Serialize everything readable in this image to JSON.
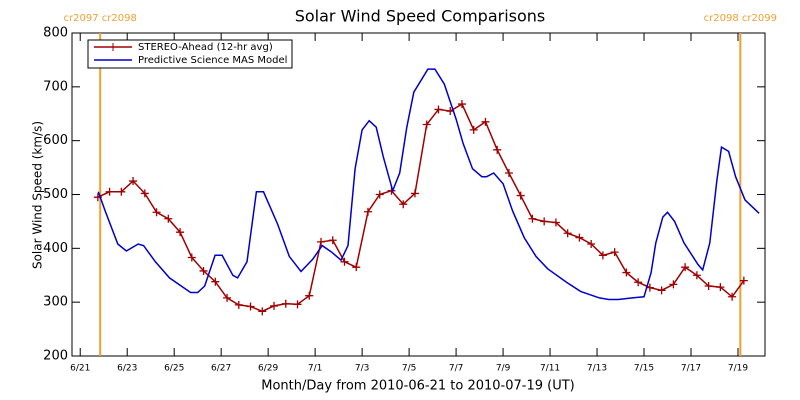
{
  "chart_data": {
    "type": "line",
    "title": "Solar Wind Speed Comparisons",
    "x_label": "Month/Day from 2010-06-21 to 2010-07-19 (UT)",
    "y_label": "Solar Wind Speed (km/s)",
    "xlim": [
      -0.35,
      29.15
    ],
    "xticks": [
      {
        "value": 0,
        "label": "6/21"
      },
      {
        "value": 2,
        "label": "6/23"
      },
      {
        "value": 4,
        "label": "6/25"
      },
      {
        "value": 6,
        "label": "6/27"
      },
      {
        "value": 8,
        "label": "6/29"
      },
      {
        "value": 10,
        "label": "7/1"
      },
      {
        "value": 12,
        "label": "7/3"
      },
      {
        "value": 14,
        "label": "7/5"
      },
      {
        "value": 16,
        "label": "7/7"
      },
      {
        "value": 18,
        "label": "7/9"
      },
      {
        "value": 20,
        "label": "7/11"
      },
      {
        "value": 22,
        "label": "7/13"
      },
      {
        "value": 24,
        "label": "7/15"
      },
      {
        "value": 26,
        "label": "7/17"
      },
      {
        "value": 28,
        "label": "7/19"
      }
    ],
    "ylim": [
      200,
      800
    ],
    "yticks": [
      200,
      300,
      400,
      500,
      600,
      700,
      800
    ],
    "legend": "upper left",
    "markers": [
      {
        "x": 0.85,
        "label": "cr2097 cr2098",
        "color": "#f0a030"
      },
      {
        "x": 28.1,
        "label": "cr2098 cr2099",
        "color": "#f0a030"
      }
    ],
    "series": [
      {
        "name": "STEREO-Ahead (12-hr avg)",
        "color": "#a00000",
        "symbol": "plus",
        "x": [
          0.75,
          1.25,
          1.75,
          2.25,
          2.75,
          3.25,
          3.75,
          4.25,
          4.75,
          5.25,
          5.75,
          6.25,
          6.75,
          7.25,
          7.75,
          8.25,
          8.75,
          9.25,
          9.75,
          10.25,
          10.75,
          11.25,
          11.75,
          12.25,
          12.75,
          13.25,
          13.75,
          14.25,
          14.75,
          15.25,
          15.75,
          16.25,
          16.75,
          17.25,
          17.75,
          18.25,
          18.75,
          19.25,
          19.75,
          20.25,
          20.75,
          21.25,
          21.75,
          22.25,
          22.75,
          23.25,
          23.75,
          24.25,
          24.75,
          25.25,
          25.75,
          26.25,
          26.75,
          27.25,
          27.75,
          28.25
        ],
        "values": [
          495,
          505,
          505,
          525,
          502,
          467,
          455,
          430,
          383,
          358,
          338,
          308,
          295,
          292,
          283,
          293,
          297,
          296,
          312,
          412,
          415,
          375,
          365,
          468,
          500,
          507,
          482,
          502,
          630,
          658,
          655,
          668,
          620,
          635,
          583,
          540,
          498,
          455,
          450,
          448,
          428,
          420,
          408,
          387,
          393,
          355,
          337,
          327,
          322,
          333,
          365,
          350,
          330,
          328,
          310,
          340
        ]
      },
      {
        "name": "Predictive Science MAS Model",
        "color": "#0000cc",
        "x": [
          0.77,
          1.06,
          1.6,
          1.96,
          2.47,
          2.7,
          3.2,
          3.8,
          4.7,
          5.0,
          5.3,
          5.74,
          6.04,
          6.5,
          6.7,
          7.1,
          7.5,
          7.8,
          8.4,
          8.9,
          9.4,
          9.9,
          10.3,
          10.7,
          11.1,
          11.4,
          11.7,
          12.0,
          12.3,
          12.6,
          12.9,
          13.3,
          13.6,
          13.9,
          14.2,
          14.8,
          15.1,
          15.5,
          16.0,
          16.3,
          16.7,
          17.1,
          17.3,
          17.6,
          18.0,
          18.4,
          18.9,
          19.4,
          19.9,
          20.7,
          21.3,
          22.1,
          22.5,
          22.9,
          23.5,
          24.0,
          24.3,
          24.5,
          24.8,
          25.0,
          25.3,
          25.7,
          26.3,
          26.5,
          26.8,
          27.1,
          27.3,
          27.6,
          27.9,
          28.3,
          28.9
        ],
        "values": [
          505,
          470,
          408,
          395,
          408,
          405,
          375,
          345,
          318,
          318,
          330,
          387,
          387,
          350,
          345,
          375,
          505,
          505,
          445,
          385,
          357,
          380,
          405,
          393,
          378,
          405,
          548,
          620,
          637,
          625,
          570,
          507,
          540,
          625,
          690,
          733,
          733,
          705,
          640,
          595,
          548,
          533,
          533,
          540,
          520,
          470,
          420,
          385,
          362,
          337,
          320,
          308,
          305,
          305,
          308,
          310,
          355,
          410,
          458,
          467,
          450,
          410,
          370,
          360,
          410,
          525,
          588,
          580,
          533,
          490,
          465
        ]
      }
    ]
  }
}
